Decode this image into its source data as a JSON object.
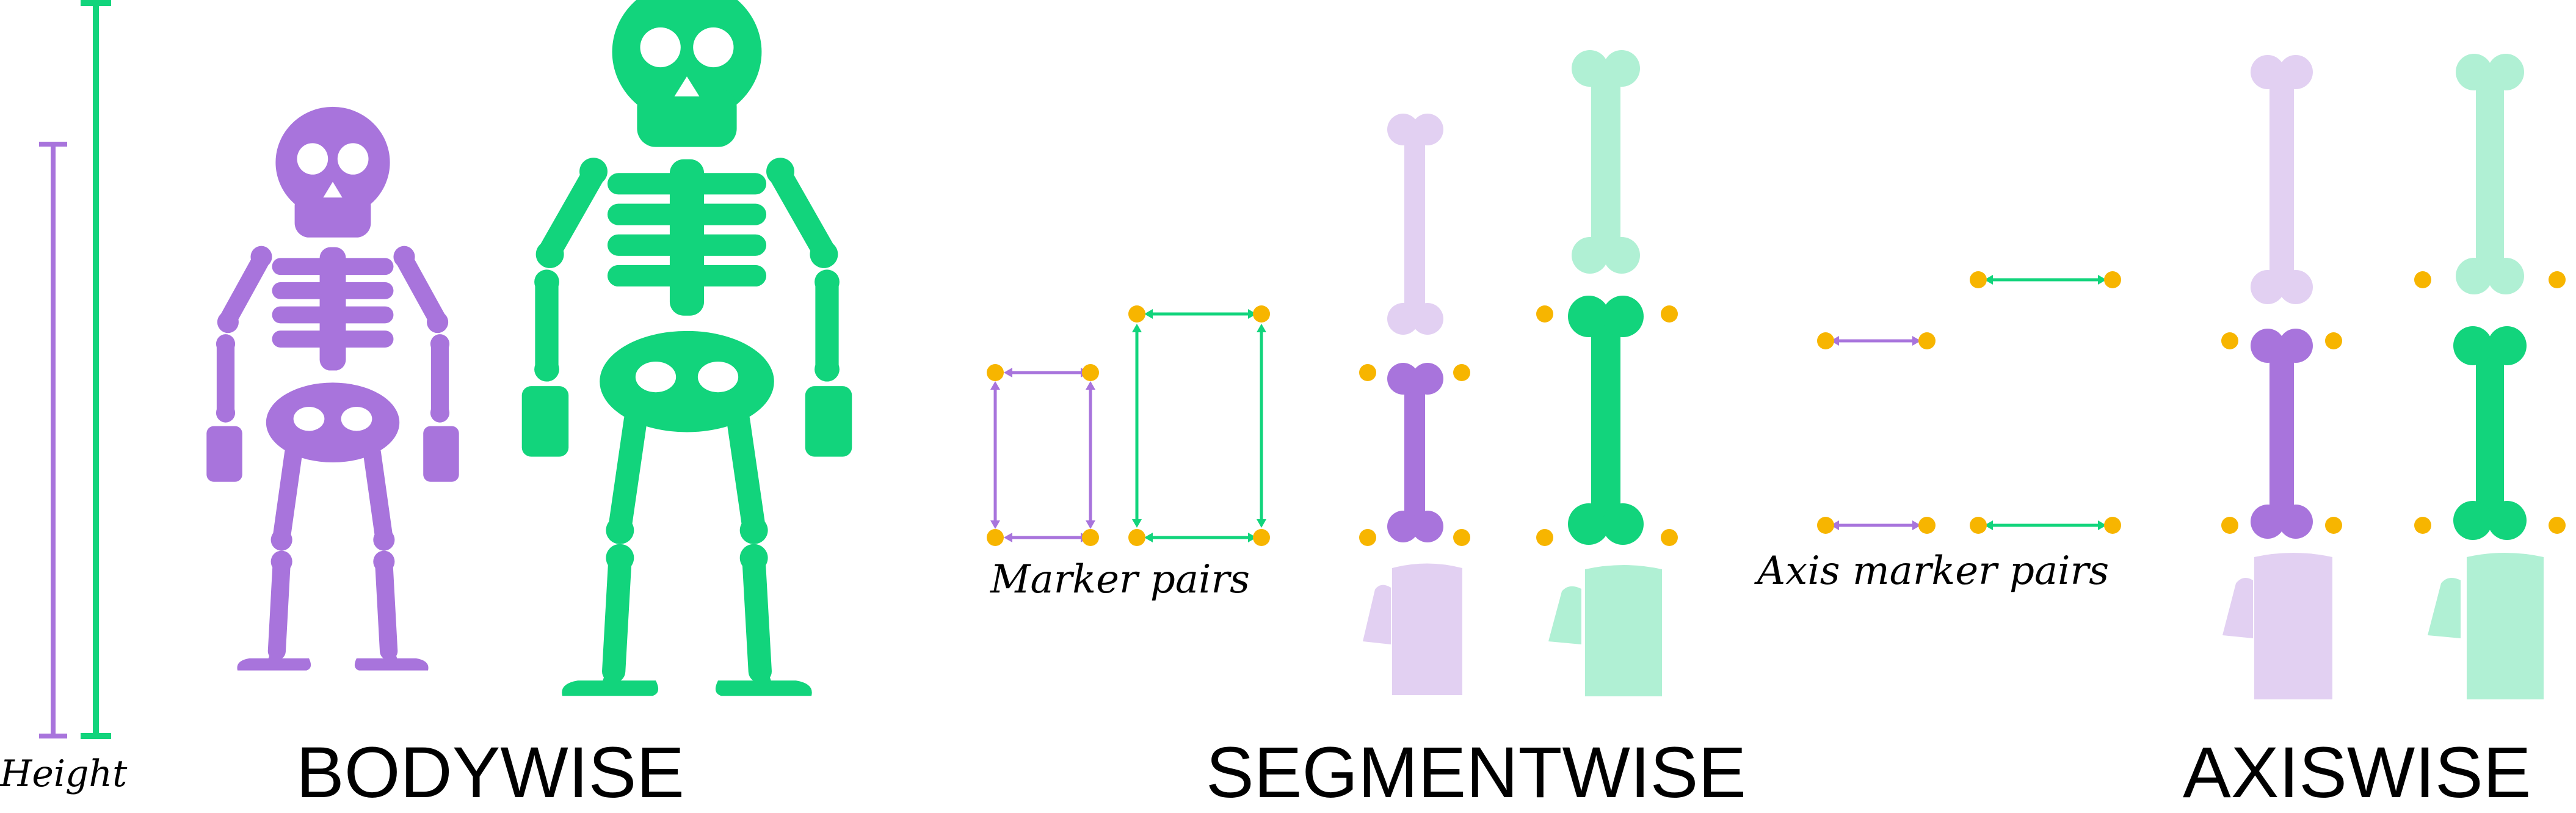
{
  "labels": {
    "height": "Height",
    "marker_pairs": "Marker pairs",
    "axis_marker_pairs": "Axis marker pairs"
  },
  "sections": {
    "bodywise": "BODYWISE",
    "segmentwise": "SEGMENTWISE",
    "axiswise": "AXISWISE"
  },
  "colors": {
    "purple": "#a874dc",
    "green": "#12d47c",
    "purple_light": "#e2d0f2",
    "green_light": "#b0f0d4",
    "marker": "#f7b500"
  }
}
